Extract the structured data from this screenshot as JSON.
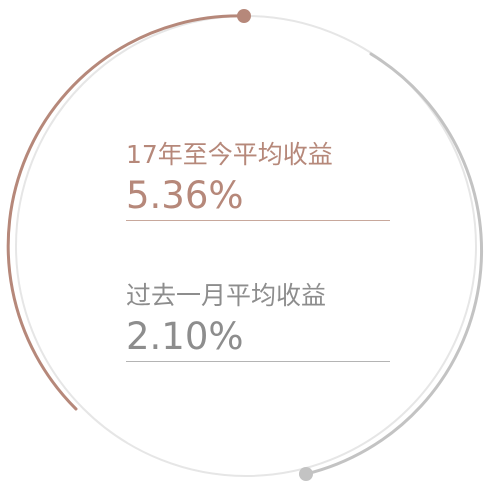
{
  "colors": {
    "accent": "#b6887a",
    "muted": "#8d8d8d",
    "track": "#e6e6e6",
    "arc_secondary": "#c3c3c3",
    "divider_primary": "#c8a89c",
    "divider_secondary": "#b4b4b4"
  },
  "stats": [
    {
      "label": "17年至今平均收益",
      "value": "5.36%"
    },
    {
      "label": "过去一月平均收益",
      "value": "2.10%"
    }
  ]
}
